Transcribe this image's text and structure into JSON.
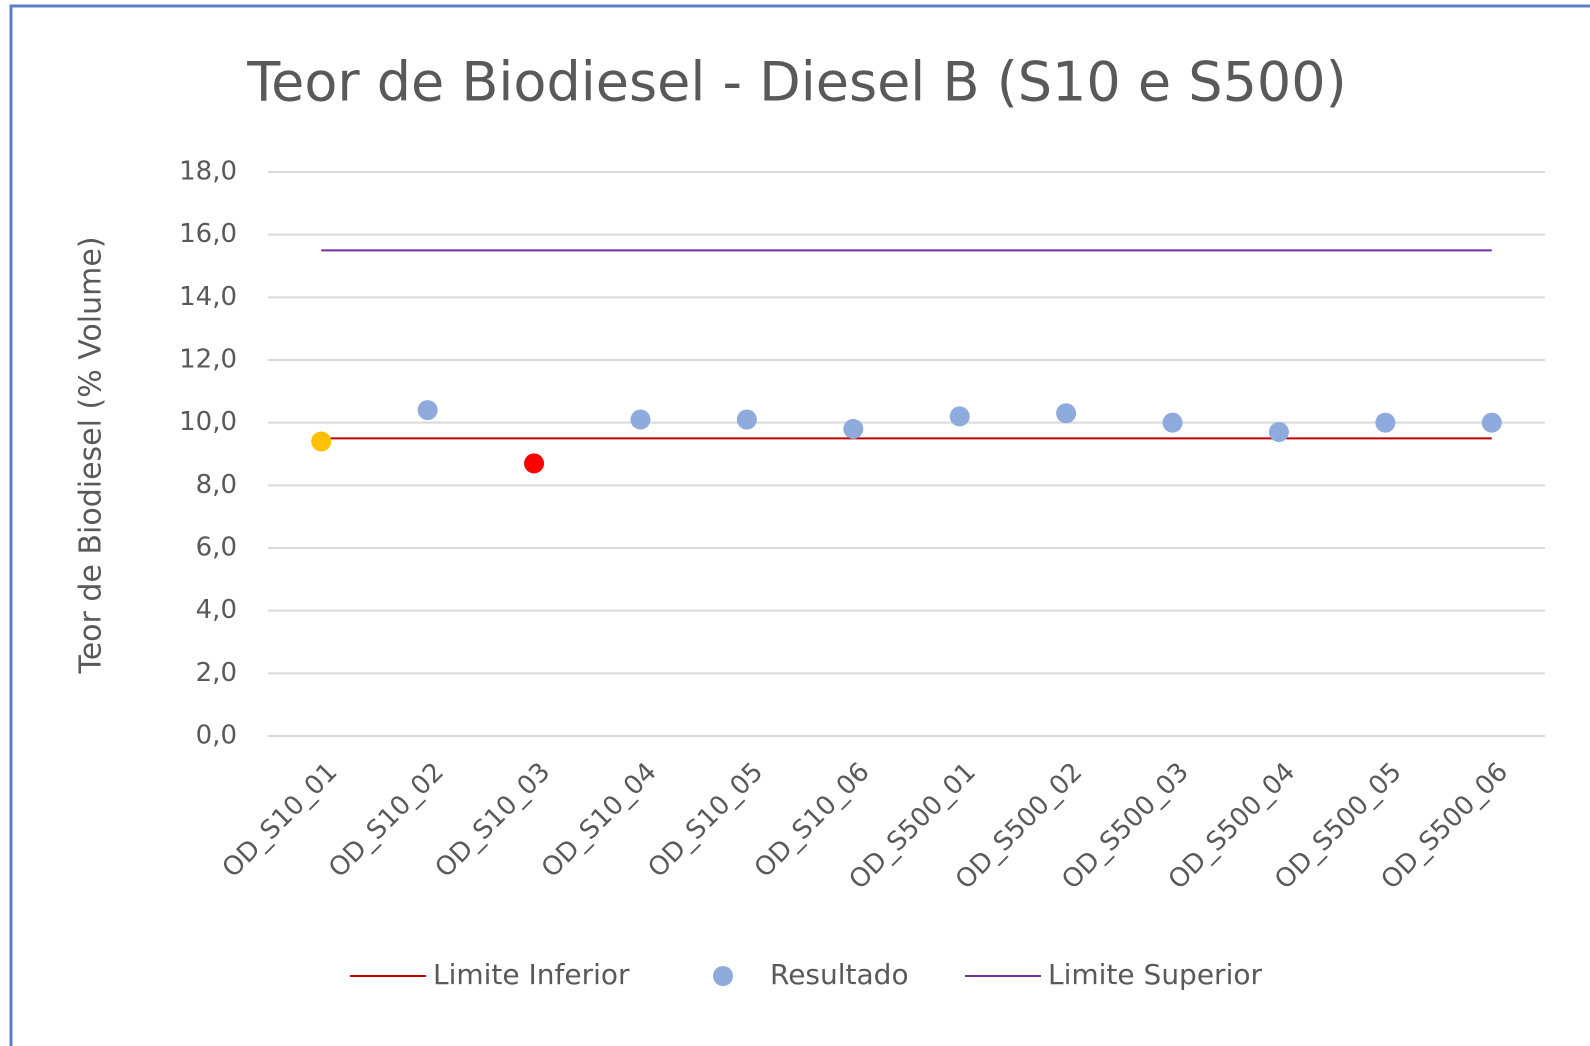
{
  "chart_data": {
    "type": "line",
    "title": "Teor de Biodiesel - Diesel B (S10 e S500)",
    "y_label": "Teor de Biodiesel (% Volume)",
    "categories": [
      "OD_S10_01",
      "OD_S10_02",
      "OD_S10_03",
      "OD_S10_04",
      "OD_S10_05",
      "OD_S10_06",
      "OD_S500_01",
      "OD_S500_02",
      "OD_S500_03",
      "OD_S500_04",
      "OD_S500_05",
      "OD_S500_06"
    ],
    "series": [
      {
        "name": "Limite Inferior",
        "type": "line",
        "color": "#c00000",
        "values": [
          9.5,
          9.5,
          9.5,
          9.5,
          9.5,
          9.5,
          9.5,
          9.5,
          9.5,
          9.5,
          9.5,
          9.5
        ]
      },
      {
        "name": "Resultado",
        "type": "scatter",
        "color": "#8faadc",
        "point_colors": [
          "#ffc000",
          "#8faadc",
          "#ff0000",
          "#8faadc",
          "#8faadc",
          "#8faadc",
          "#8faadc",
          "#8faadc",
          "#8faadc",
          "#8faadc",
          "#8faadc",
          "#8faadc"
        ],
        "values": [
          9.4,
          10.4,
          8.7,
          10.1,
          10.1,
          9.8,
          10.2,
          10.3,
          10.0,
          9.7,
          10.0,
          10.0
        ]
      },
      {
        "name": "Limite Superior",
        "type": "line",
        "color": "#7030a0",
        "values": [
          15.5,
          15.5,
          15.5,
          15.5,
          15.5,
          15.5,
          15.5,
          15.5,
          15.5,
          15.5,
          15.5,
          15.5
        ]
      }
    ],
    "ylim": [
      0,
      18
    ],
    "yticks": [
      {
        "value": 0,
        "label": "0,0"
      },
      {
        "value": 2,
        "label": "2,0"
      },
      {
        "value": 4,
        "label": "4,0"
      },
      {
        "value": 6,
        "label": "6,0"
      },
      {
        "value": 8,
        "label": "8,0"
      },
      {
        "value": 10,
        "label": "10,0"
      },
      {
        "value": 12,
        "label": "12,0"
      },
      {
        "value": 14,
        "label": "14,0"
      },
      {
        "value": 16,
        "label": "16,0"
      },
      {
        "value": 18,
        "label": "18,0"
      }
    ],
    "grid": true,
    "legend": "bottom"
  }
}
